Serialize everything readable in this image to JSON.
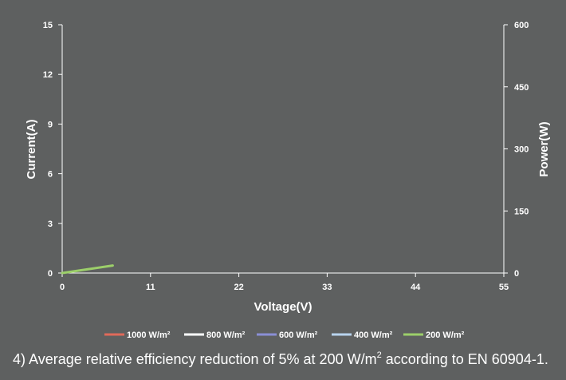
{
  "chart_data": {
    "type": "line",
    "xlabel": "Voltage(V)",
    "ylabel_left": "Current(A)",
    "ylabel_right": "Power(W)",
    "xlim": [
      0,
      55
    ],
    "ylim_left": [
      0,
      15
    ],
    "ylim_right": [
      0,
      600
    ],
    "x_ticks": [
      "0",
      "11",
      "22",
      "33",
      "44",
      "55"
    ],
    "y_left_ticks": [
      "0",
      "3",
      "6",
      "9",
      "12",
      "15"
    ],
    "y_right_ticks": [
      "0",
      "150",
      "300",
      "450",
      "600"
    ],
    "grid": false,
    "legend_position": "bottom",
    "series": [
      {
        "name": "1000 W/m²",
        "color": "#e06a5a",
        "x": [],
        "y": []
      },
      {
        "name": "800 W/m²",
        "color": "#ffffff",
        "x": [],
        "y": []
      },
      {
        "name": "600 W/m²",
        "color": "#8a8fd6",
        "x": [],
        "y": []
      },
      {
        "name": "400 W/m²",
        "color": "#b8d4ee",
        "x": [],
        "y": []
      },
      {
        "name": "200 W/m²",
        "color": "#9ccf6a",
        "x": [
          0,
          6.3
        ],
        "y": [
          0,
          0.45
        ]
      }
    ]
  },
  "footnote": {
    "prefix": "4) Average relative efficiency reduction of 5% at 200 W/m",
    "superscript": "2",
    "suffix": " according to EN 60904-1."
  }
}
